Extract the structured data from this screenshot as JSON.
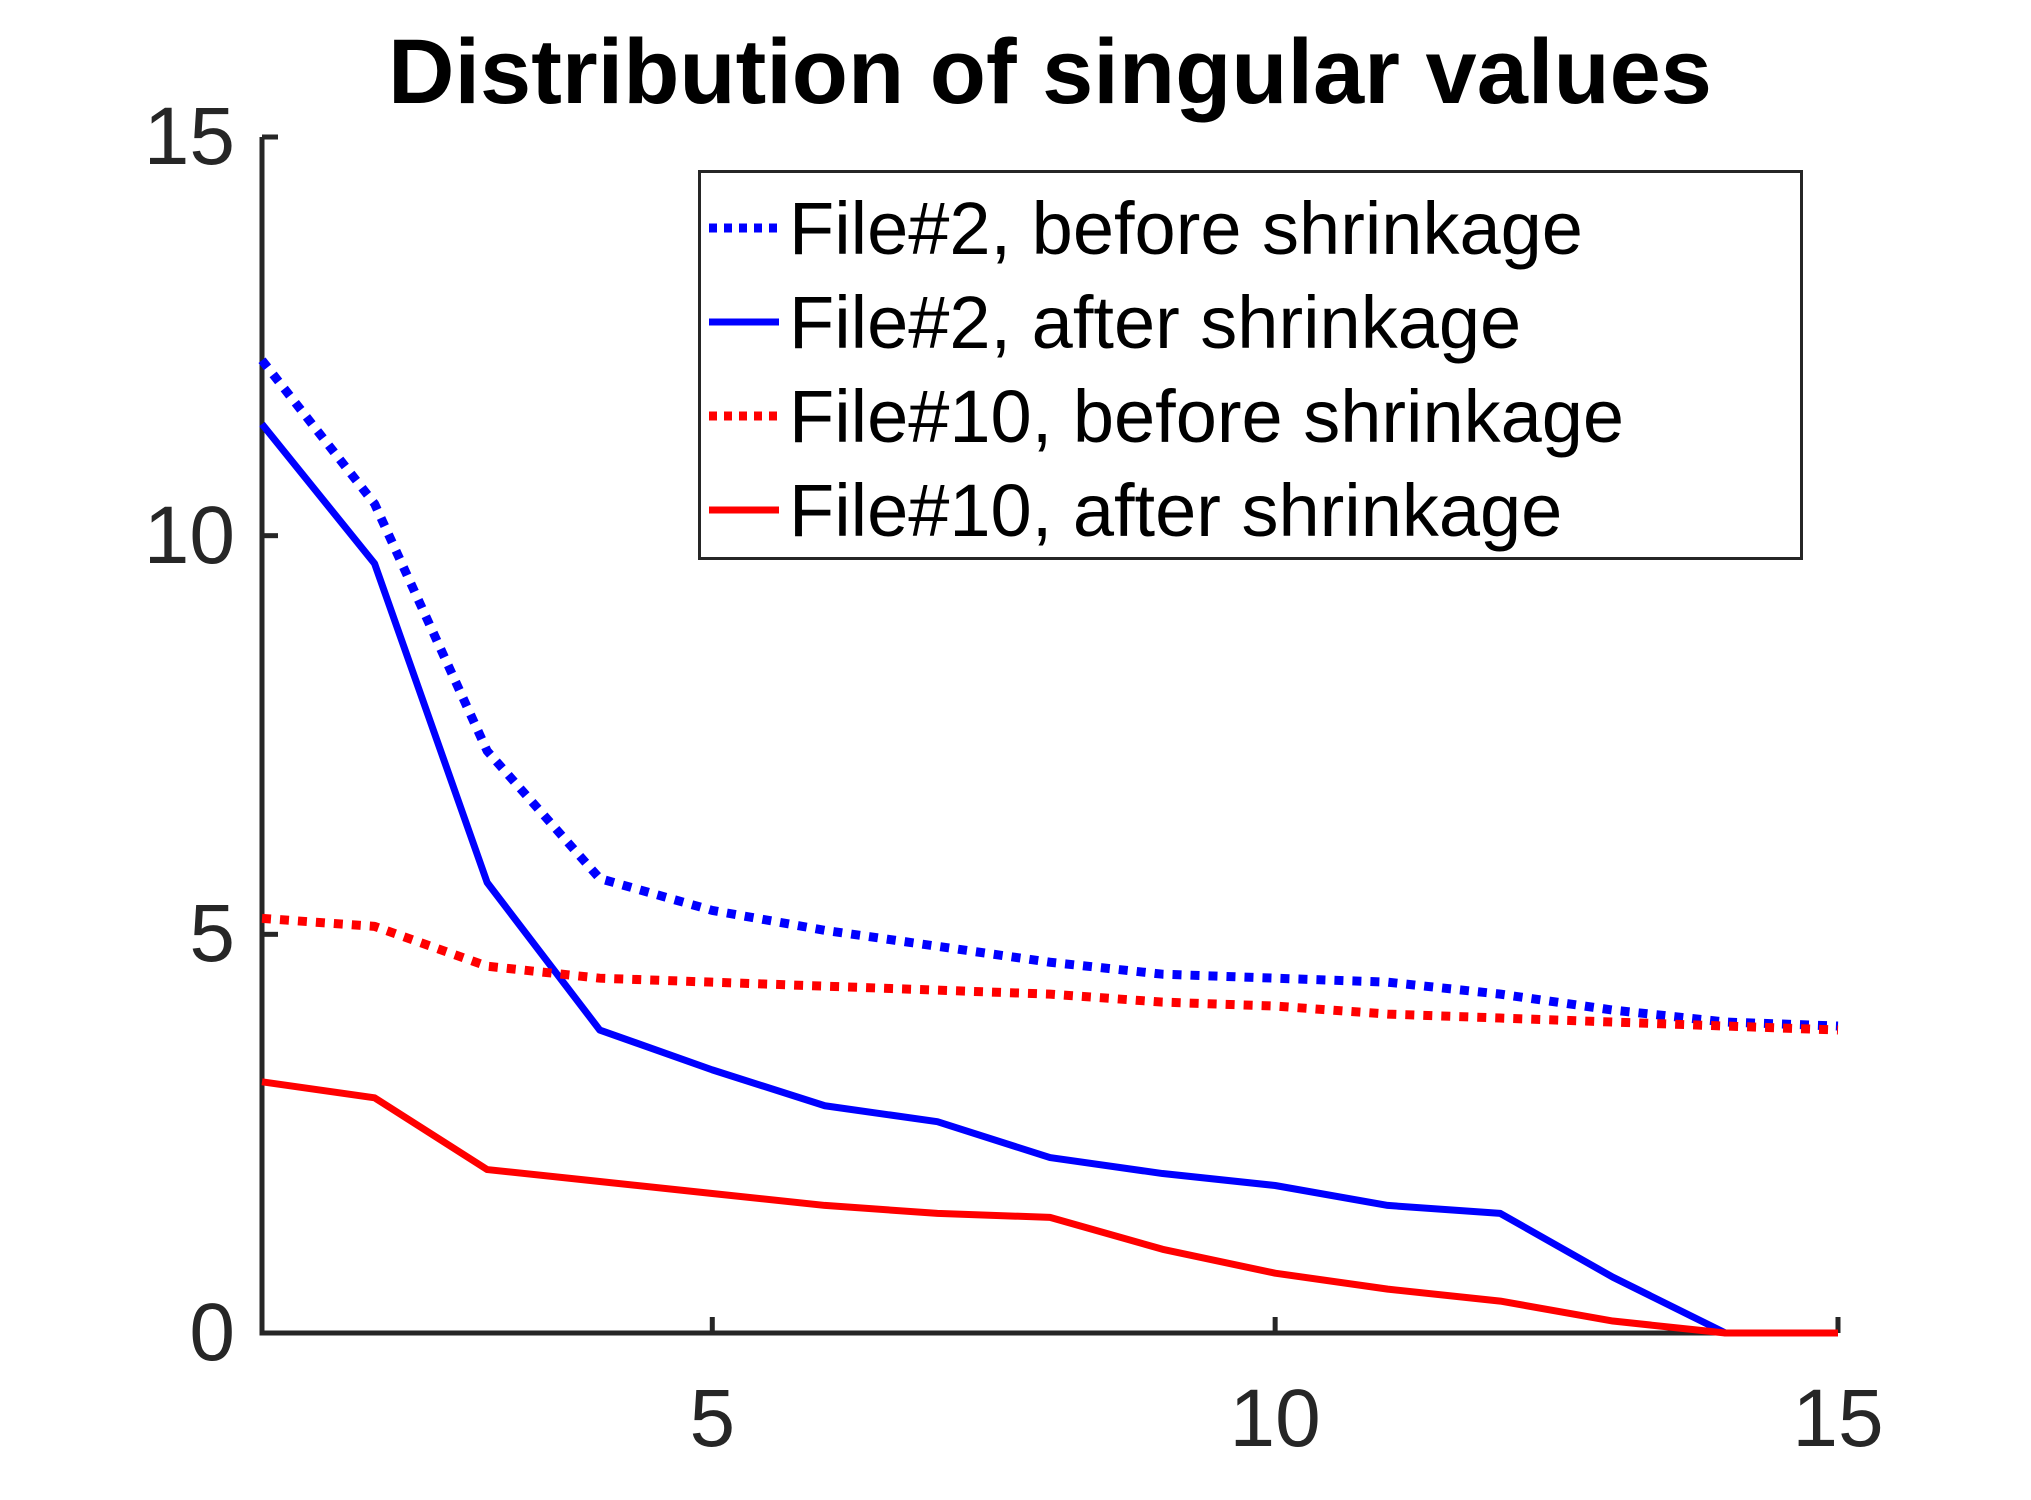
{
  "title": "Distribution of singular values",
  "axes": {
    "x_tick_labels": [
      "5",
      "10",
      "15"
    ],
    "y_tick_labels": [
      "0",
      "5",
      "10",
      "15"
    ],
    "axis_color": "#262626"
  },
  "legend": {
    "position": "upper right",
    "entries": [
      {
        "label": "File#2, before shrinkage",
        "color": "#0000FF",
        "style": "dotted"
      },
      {
        "label": "File#2, after shrinkage",
        "color": "#0000FF",
        "style": "solid"
      },
      {
        "label": "File#10, before shrinkage",
        "color": "#FF0000",
        "style": "dotted"
      },
      {
        "label": "File#10, after shrinkage",
        "color": "#FF0000",
        "style": "solid"
      }
    ]
  },
  "chart_data": {
    "type": "line",
    "title": "Distribution of singular values",
    "xlabel": "",
    "ylabel": "",
    "xlim": [
      1,
      15
    ],
    "ylim": [
      0,
      15
    ],
    "x_tick_values": [
      5,
      10,
      15
    ],
    "y_tick_values": [
      0,
      5,
      10,
      15
    ],
    "grid": false,
    "legend_position": "upper right",
    "x": [
      1,
      2,
      3,
      4,
      5,
      6,
      7,
      8,
      9,
      10,
      11,
      12,
      13,
      14,
      15
    ],
    "series": [
      {
        "name": "File#2, before shrinkage",
        "color": "#0000FF",
        "style": "dotted",
        "values": [
          12.2,
          10.4,
          7.3,
          5.7,
          5.3,
          5.05,
          4.85,
          4.65,
          4.5,
          4.45,
          4.4,
          4.25,
          4.05,
          3.9,
          3.85
        ]
      },
      {
        "name": "File#2, after shrinkage",
        "color": "#0000FF",
        "style": "solid",
        "values": [
          11.4,
          9.65,
          5.65,
          3.8,
          3.3,
          2.85,
          2.65,
          2.2,
          2.0,
          1.85,
          1.6,
          1.5,
          0.7,
          0,
          0
        ]
      },
      {
        "name": "File#10, before shrinkage",
        "color": "#FF0000",
        "style": "dotted",
        "values": [
          5.2,
          5.1,
          4.6,
          4.45,
          4.4,
          4.35,
          4.3,
          4.25,
          4.15,
          4.1,
          4.0,
          3.95,
          3.9,
          3.85,
          3.8
        ]
      },
      {
        "name": "File#10, after shrinkage",
        "color": "#FF0000",
        "style": "solid",
        "values": [
          3.15,
          2.95,
          2.05,
          1.9,
          1.75,
          1.6,
          1.5,
          1.45,
          1.05,
          0.75,
          0.55,
          0.4,
          0.15,
          0,
          0
        ]
      }
    ]
  }
}
